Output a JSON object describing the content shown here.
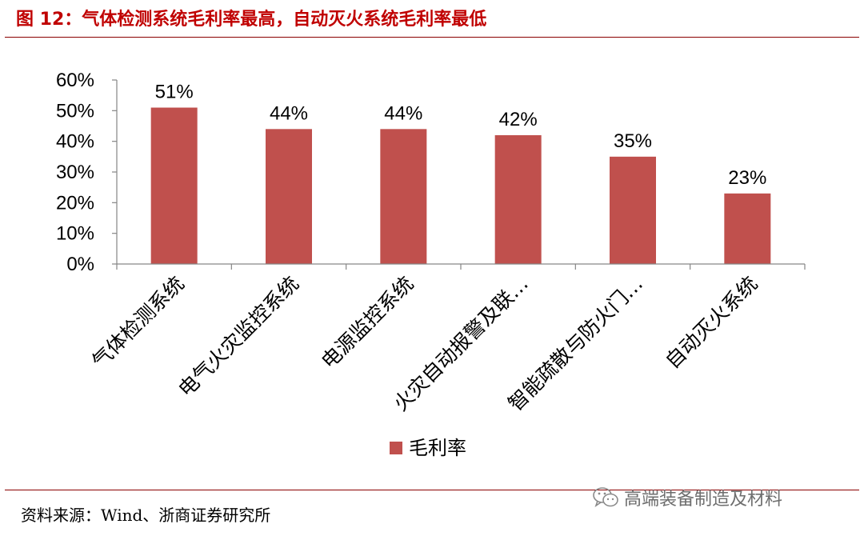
{
  "figure": {
    "title": "图 12：气体检测系统毛利率最高，自动灭火系统毛利率最低",
    "source": "资料来源：Wind、浙商证券研究所",
    "watermark": "高端装备制造及材料"
  },
  "colors": {
    "title": "#c00000",
    "rule": "#8a0000",
    "bar": "#c0504d",
    "axis": "#868686",
    "text": "#000000"
  },
  "chart_data": {
    "type": "bar",
    "categories": [
      "气体检测系统",
      "电气火灾监控系统",
      "电源监控系统",
      "火灾自动报警及联…",
      "智能疏散与防火门…",
      "自动灭火系统"
    ],
    "series": [
      {
        "name": "毛利率",
        "values": [
          51,
          44,
          44,
          42,
          35,
          23
        ],
        "data_labels": [
          "51%",
          "44%",
          "44%",
          "42%",
          "35%",
          "23%"
        ]
      }
    ],
    "yticks": [
      "0%",
      "10%",
      "20%",
      "30%",
      "40%",
      "50%",
      "60%"
    ],
    "ylim": [
      0,
      60
    ],
    "grid": false,
    "legend_position": "bottom-center"
  }
}
